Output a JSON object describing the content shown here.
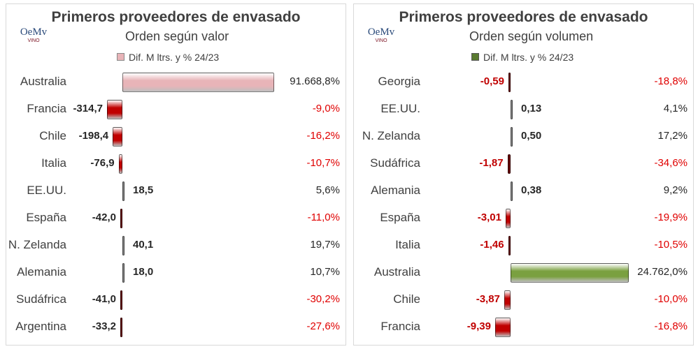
{
  "charts_common": {
    "logo_text": "OeMv",
    "logo_sub": "VINO"
  },
  "chart_data": [
    {
      "type": "bar",
      "orientation": "horizontal",
      "title": "Primeros proveedores de envasado",
      "subtitle": "Orden según valor",
      "legend": "Dif. M ltrs. y % 24/23",
      "color": "#e8b4b8",
      "neg_color": "#c00000",
      "categories": [
        "Australia",
        "Francia",
        "Chile",
        "Italia",
        "EE.UU.",
        "España",
        "N. Zelanda",
        "Alemania",
        "Sudáfrica",
        "Argentina"
      ],
      "values": [
        3100,
        -314.7,
        -198.4,
        -76.9,
        18.5,
        -42.0,
        40.1,
        18.0,
        -41.0,
        -33.2
      ],
      "value_labels": [
        "",
        "-314,7",
        "-198,4",
        "-76,9",
        "18,5",
        "-42,0",
        "40,1",
        "18,0",
        "-41,0",
        "-33,2"
      ],
      "pct_labels": [
        "91.668,8%",
        "-9,0%",
        "-16,2%",
        "-10,7%",
        "5,6%",
        "-11,0%",
        "19,7%",
        "10,7%",
        "-30,2%",
        "-27,6%"
      ]
    },
    {
      "type": "bar",
      "orientation": "horizontal",
      "title": "Primeros proveedores de envasado",
      "subtitle": "Orden  según volumen",
      "legend": "Dif. M ltrs. y % 24/23",
      "color": "#7aa040",
      "neg_color": "#c00000",
      "categories": [
        "Georgia",
        "EE.UU.",
        "N. Zelanda",
        "Sudáfrica",
        "Alemania",
        "España",
        "Italia",
        "Australia",
        "Chile",
        "Francia"
      ],
      "values": [
        -0.59,
        0.13,
        0.5,
        -1.87,
        0.38,
        -3.01,
        -1.46,
        72,
        -3.87,
        -9.39
      ],
      "value_labels": [
        "-0,59",
        "0,13",
        "0,50",
        "-1,87",
        "0,38",
        "-3,01",
        "-1,46",
        "",
        "-3,87",
        "-9,39"
      ],
      "pct_labels": [
        "-18,8%",
        "4,1%",
        "17,2%",
        "-34,6%",
        "9,2%",
        "-19,9%",
        "-10,5%",
        "24.762,0%",
        "-10,0%",
        "-16,8%"
      ]
    }
  ]
}
